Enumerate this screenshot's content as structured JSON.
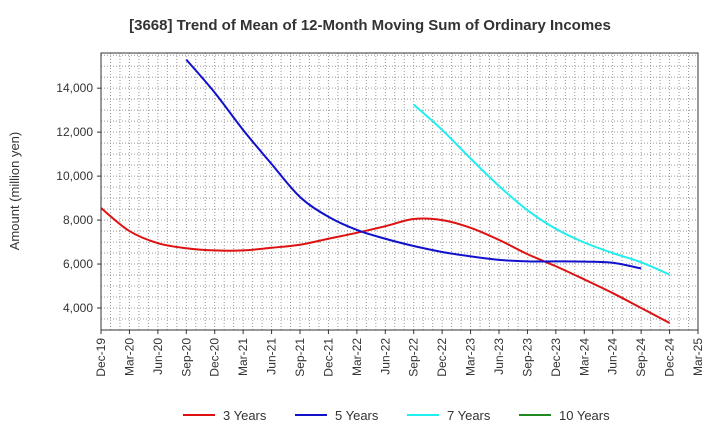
{
  "chart_data": {
    "type": "line",
    "title": "[3668]  Trend of Mean of 12-Month Moving Sum of Ordinary Incomes",
    "xlabel": "",
    "ylabel": "Amount (million yen)",
    "ylim": [
      3000,
      15600
    ],
    "y_ticks": [
      4000,
      6000,
      8000,
      10000,
      12000,
      14000
    ],
    "y_tick_labels": [
      "4,000",
      "6,000",
      "8,000",
      "10,000",
      "12,000",
      "14,000"
    ],
    "x_tick_labels": [
      "Dec-19",
      "Mar-20",
      "Jun-20",
      "Sep-20",
      "Dec-20",
      "Mar-21",
      "Jun-21",
      "Sep-21",
      "Dec-21",
      "Mar-22",
      "Jun-22",
      "Sep-22",
      "Dec-22",
      "Mar-23",
      "Jun-23",
      "Sep-23",
      "Dec-23",
      "Mar-24",
      "Jun-24",
      "Sep-24",
      "Dec-24",
      "Mar-25"
    ],
    "grid": true,
    "legend_position": "bottom",
    "series": [
      {
        "name": "3 Years",
        "color": "#dd1111",
        "start_index": 0,
        "values": [
          8550,
          7500,
          6950,
          6720,
          6620,
          6620,
          6740,
          6880,
          7150,
          7420,
          7720,
          8050,
          8000,
          7650,
          7100,
          6450,
          5900,
          5300,
          4680,
          4000,
          3320
        ]
      },
      {
        "name": "5 Years",
        "color": "#1111cc",
        "start_index": 3,
        "values": [
          15300,
          13800,
          12100,
          10550,
          9050,
          8150,
          7550,
          7150,
          6820,
          6550,
          6350,
          6190,
          6120,
          6120,
          6110,
          6060,
          5800
        ]
      },
      {
        "name": "7 Years",
        "color": "#22eeee",
        "start_index": 11,
        "values": [
          13250,
          12100,
          10800,
          9550,
          8450,
          7600,
          6980,
          6500,
          6080,
          5520
        ]
      },
      {
        "name": "10 Years",
        "color": "#228822",
        "start_index": 0,
        "values": []
      }
    ]
  }
}
